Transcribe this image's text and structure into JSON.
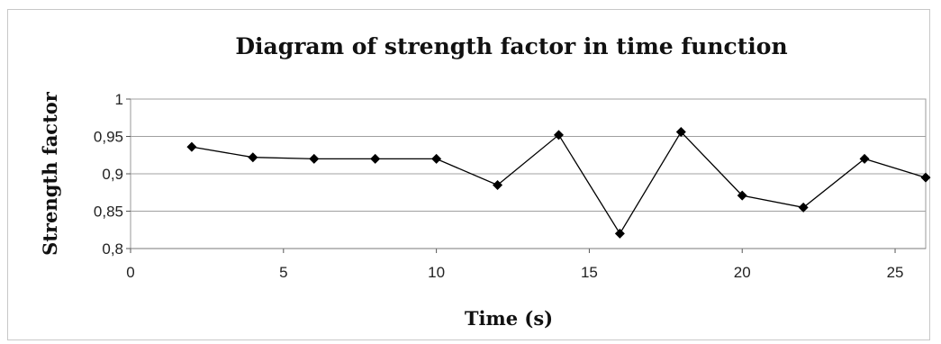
{
  "chart_data": {
    "type": "line",
    "title": "Diagram of strength factor in time function",
    "xlabel": "Time (s)",
    "ylabel": "Strength factor",
    "xlim": [
      0,
      26
    ],
    "ylim": [
      0.8,
      1
    ],
    "x_ticks": [
      0,
      5,
      10,
      15,
      20,
      25
    ],
    "x_tick_labels": [
      "0",
      "5",
      "10",
      "15",
      "20",
      "25"
    ],
    "y_ticks": [
      0.8,
      0.85,
      0.9,
      0.95,
      1
    ],
    "y_tick_labels": [
      "0,8",
      "0,85",
      "0,9",
      "0,95",
      "1"
    ],
    "grid": "horizontal",
    "legend": "none",
    "marker": "diamond",
    "line_color": "#000000",
    "series": [
      {
        "x": [
          2,
          4,
          6,
          8,
          10,
          12,
          14,
          16,
          18,
          20,
          22,
          24,
          26
        ],
        "values": [
          0.936,
          0.922,
          0.92,
          0.92,
          0.92,
          0.885,
          0.952,
          0.82,
          0.956,
          0.871,
          0.855,
          0.92,
          0.895
        ]
      }
    ]
  }
}
